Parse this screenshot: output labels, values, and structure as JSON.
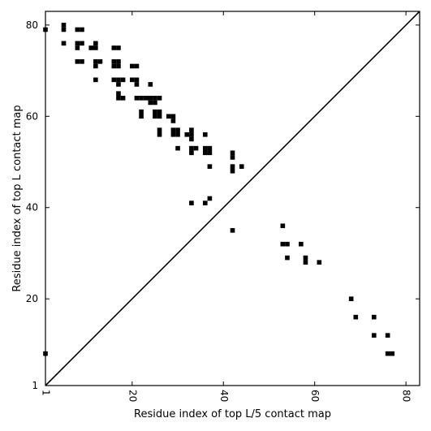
{
  "chart_data": {
    "type": "scatter",
    "marker": "square",
    "xlabel": "Residue index of top L/5 contact map",
    "ylabel": "Residue index of top L contact map",
    "xlim": [
      1,
      83
    ],
    "ylim": [
      1,
      83
    ],
    "xticks": [
      1,
      20,
      40,
      60,
      80
    ],
    "xtick_labels": [
      "1",
      "20",
      "40",
      "60",
      "80"
    ],
    "yticks": [
      1,
      20,
      40,
      60,
      80
    ],
    "ytick_labels": [
      "1",
      "20",
      "40",
      "60",
      "80"
    ],
    "diagonal": true,
    "grid": false,
    "colors": {
      "marker": "#000000",
      "axes": "#000000",
      "background": "#ffffff"
    },
    "upper_left_points": [
      [
        1,
        79
      ],
      [
        5,
        80
      ],
      [
        5,
        79
      ],
      [
        5,
        76
      ],
      [
        8,
        79
      ],
      [
        9,
        79
      ],
      [
        8,
        76
      ],
      [
        9,
        76
      ],
      [
        8,
        75
      ],
      [
        8,
        72
      ],
      [
        9,
        72
      ],
      [
        11,
        75
      ],
      [
        12,
        76
      ],
      [
        12,
        75
      ],
      [
        12,
        72
      ],
      [
        13,
        72
      ],
      [
        12,
        71
      ],
      [
        12,
        68
      ],
      [
        16,
        75
      ],
      [
        17,
        75
      ],
      [
        16,
        72
      ],
      [
        17,
        72
      ],
      [
        16,
        71
      ],
      [
        17,
        71
      ],
      [
        16,
        68
      ],
      [
        17,
        68
      ],
      [
        18,
        68
      ],
      [
        17,
        67
      ],
      [
        17,
        65
      ],
      [
        17,
        64
      ],
      [
        18,
        64
      ],
      [
        20,
        71
      ],
      [
        21,
        71
      ],
      [
        20,
        68
      ],
      [
        21,
        68
      ],
      [
        21,
        67
      ],
      [
        21,
        64
      ],
      [
        22,
        64
      ],
      [
        23,
        64
      ],
      [
        24,
        64
      ],
      [
        25,
        64
      ],
      [
        26,
        64
      ],
      [
        24,
        67
      ],
      [
        24,
        63
      ],
      [
        25,
        63
      ],
      [
        22,
        61
      ],
      [
        22,
        60
      ],
      [
        25,
        61
      ],
      [
        26,
        61
      ],
      [
        25,
        60
      ],
      [
        26,
        60
      ],
      [
        26,
        57
      ],
      [
        26,
        56
      ],
      [
        28,
        60
      ],
      [
        29,
        60
      ],
      [
        29,
        59
      ],
      [
        29,
        57
      ],
      [
        30,
        57
      ],
      [
        29,
        56
      ],
      [
        30,
        56
      ],
      [
        30,
        53
      ],
      [
        32,
        56
      ],
      [
        33,
        57
      ],
      [
        33,
        56
      ],
      [
        33,
        55
      ],
      [
        33,
        53
      ],
      [
        34,
        53
      ],
      [
        33,
        52
      ],
      [
        33,
        41
      ],
      [
        36,
        56
      ],
      [
        36,
        53
      ],
      [
        37,
        53
      ],
      [
        36,
        52
      ],
      [
        37,
        52
      ],
      [
        37,
        49
      ],
      [
        36,
        41
      ],
      [
        37,
        42
      ],
      [
        42,
        52
      ],
      [
        42,
        51
      ],
      [
        42,
        49
      ],
      [
        42,
        48
      ],
      [
        44,
        49
      ],
      [
        42,
        35
      ]
    ],
    "lower_right_points": [
      [
        53,
        36
      ],
      [
        53,
        32
      ],
      [
        54,
        32
      ],
      [
        57,
        32
      ],
      [
        54,
        29
      ],
      [
        58,
        29
      ],
      [
        58,
        28
      ],
      [
        61,
        28
      ],
      [
        68,
        20
      ],
      [
        69,
        16
      ],
      [
        73,
        16
      ],
      [
        73,
        12
      ],
      [
        76,
        12
      ],
      [
        76,
        8
      ],
      [
        77,
        8
      ],
      [
        1,
        8
      ]
    ]
  }
}
